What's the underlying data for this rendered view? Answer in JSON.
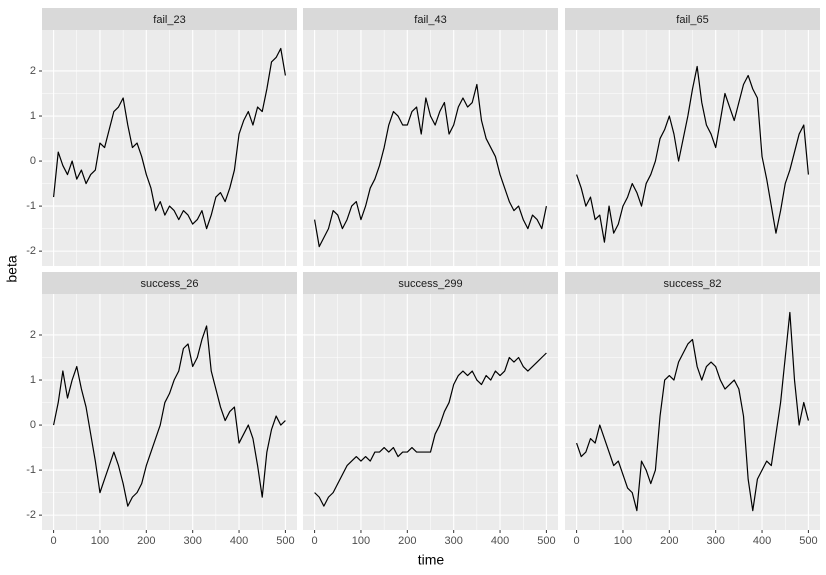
{
  "chart_data": {
    "type": "line",
    "x_label": "time",
    "y_label": "beta",
    "facet_columns": 3,
    "color": "#000000",
    "grid": true,
    "xlim": [
      -25,
      525
    ],
    "xticks": [
      0,
      100,
      200,
      300,
      400,
      500
    ],
    "ylim": [
      -2.33,
      2.91
    ],
    "yticks": [
      -2,
      -1,
      0,
      1,
      2
    ],
    "x": [
      0,
      10,
      20,
      30,
      40,
      50,
      60,
      70,
      80,
      90,
      100,
      110,
      120,
      130,
      140,
      150,
      160,
      170,
      180,
      190,
      200,
      210,
      220,
      230,
      240,
      250,
      260,
      270,
      280,
      290,
      300,
      310,
      320,
      330,
      340,
      350,
      360,
      370,
      380,
      390,
      400,
      410,
      420,
      430,
      440,
      450,
      460,
      470,
      480,
      490,
      500
    ],
    "series": [
      {
        "name": "fail_23",
        "values": [
          -0.8,
          0.2,
          -0.1,
          -0.3,
          0,
          -0.4,
          -0.2,
          -0.5,
          -0.3,
          -0.2,
          0.4,
          0.3,
          0.7,
          1.1,
          1.2,
          1.4,
          0.8,
          0.3,
          0.4,
          0.1,
          -0.3,
          -0.6,
          -1.1,
          -0.9,
          -1.2,
          -1.0,
          -1.1,
          -1.3,
          -1.1,
          -1.2,
          -1.4,
          -1.3,
          -1.1,
          -1.5,
          -1.2,
          -0.8,
          -0.7,
          -0.9,
          -0.6,
          -0.2,
          0.6,
          0.9,
          1.1,
          0.8,
          1.2,
          1.1,
          1.6,
          2.2,
          2.3,
          2.5,
          1.9
        ]
      },
      {
        "name": "fail_43",
        "values": [
          -1.3,
          -1.9,
          -1.7,
          -1.5,
          -1.1,
          -1.2,
          -1.5,
          -1.3,
          -1.0,
          -0.9,
          -1.3,
          -1.0,
          -0.6,
          -0.4,
          -0.1,
          0.3,
          0.8,
          1.1,
          1.0,
          0.8,
          0.8,
          1.1,
          1.2,
          0.6,
          1.4,
          1.0,
          0.8,
          1.1,
          1.3,
          0.6,
          0.8,
          1.2,
          1.4,
          1.2,
          1.3,
          1.7,
          0.9,
          0.5,
          0.3,
          0.1,
          -0.3,
          -0.6,
          -0.9,
          -1.1,
          -1.0,
          -1.3,
          -1.5,
          -1.2,
          -1.3,
          -1.5,
          -1.0
        ]
      },
      {
        "name": "fail_65",
        "values": [
          -0.3,
          -0.6,
          -1.0,
          -0.8,
          -1.3,
          -1.2,
          -1.8,
          -1.0,
          -1.6,
          -1.4,
          -1.0,
          -0.8,
          -0.5,
          -0.7,
          -1.0,
          -0.5,
          -0.3,
          0.0,
          0.5,
          0.7,
          1.0,
          0.6,
          0.0,
          0.5,
          1.0,
          1.6,
          2.1,
          1.3,
          0.8,
          0.6,
          0.3,
          0.9,
          1.5,
          1.2,
          0.9,
          1.3,
          1.7,
          1.9,
          1.6,
          1.4,
          0.1,
          -0.4,
          -1.0,
          -1.6,
          -1.1,
          -0.5,
          -0.2,
          0.2,
          0.6,
          0.8,
          -0.3
        ]
      },
      {
        "name": "success_26",
        "values": [
          0.0,
          0.5,
          1.2,
          0.6,
          1.0,
          1.3,
          0.8,
          0.4,
          -0.2,
          -0.8,
          -1.5,
          -1.2,
          -0.9,
          -0.6,
          -0.9,
          -1.3,
          -1.8,
          -1.6,
          -1.5,
          -1.3,
          -0.9,
          -0.6,
          -0.3,
          0.0,
          0.5,
          0.7,
          1.0,
          1.2,
          1.7,
          1.8,
          1.3,
          1.5,
          1.9,
          2.2,
          1.2,
          0.8,
          0.4,
          0.1,
          0.3,
          0.4,
          -0.4,
          -0.2,
          0.0,
          -0.3,
          -0.9,
          -1.6,
          -0.6,
          -0.1,
          0.2,
          0.0,
          0.1
        ]
      },
      {
        "name": "success_299",
        "values": [
          -1.5,
          -1.6,
          -1.8,
          -1.6,
          -1.5,
          -1.3,
          -1.1,
          -0.9,
          -0.8,
          -0.7,
          -0.8,
          -0.7,
          -0.8,
          -0.6,
          -0.6,
          -0.5,
          -0.6,
          -0.5,
          -0.7,
          -0.6,
          -0.6,
          -0.5,
          -0.6,
          -0.6,
          -0.6,
          -0.6,
          -0.2,
          0.0,
          0.3,
          0.5,
          0.9,
          1.1,
          1.2,
          1.1,
          1.2,
          1.0,
          0.9,
          1.1,
          1.0,
          1.2,
          1.1,
          1.2,
          1.5,
          1.4,
          1.5,
          1.3,
          1.2,
          1.3,
          1.4,
          1.5,
          1.6
        ]
      },
      {
        "name": "success_82",
        "values": [
          -0.4,
          -0.7,
          -0.6,
          -0.3,
          -0.4,
          0.0,
          -0.3,
          -0.6,
          -0.9,
          -0.8,
          -1.1,
          -1.4,
          -1.5,
          -1.9,
          -0.8,
          -1.0,
          -1.3,
          -1.0,
          0.2,
          1.0,
          1.1,
          1.0,
          1.4,
          1.6,
          1.8,
          1.9,
          1.3,
          1.0,
          1.3,
          1.4,
          1.3,
          1.0,
          0.8,
          0.9,
          1.0,
          0.8,
          0.2,
          -1.2,
          -1.9,
          -1.2,
          -1.0,
          -0.8,
          -0.9,
          -0.2,
          0.5,
          1.5,
          2.5,
          1.0,
          0.0,
          0.5,
          0.1
        ]
      }
    ]
  }
}
